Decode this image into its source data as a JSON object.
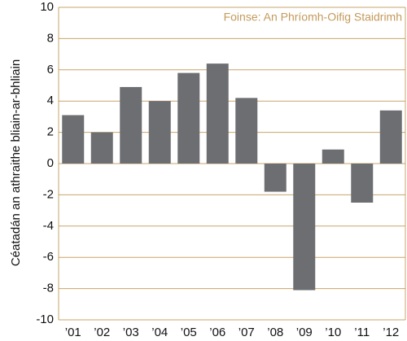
{
  "chart_data": {
    "type": "bar",
    "annotation": "Foinse: An Phríomh-Oifig Staidrimh",
    "ylabel": "Céatadán an athraithe bliain-ar-bhliain",
    "categories": [
      "’01",
      "’02",
      "’03",
      "’04",
      "’05",
      "’06",
      "’07",
      "’08",
      "’09",
      "’10",
      "’11",
      "’12"
    ],
    "values": [
      3.1,
      2.0,
      4.9,
      4.0,
      5.8,
      6.4,
      4.2,
      -1.8,
      -8.1,
      0.9,
      -2.5,
      3.4
    ],
    "color": "#6d6e71",
    "ylim": [
      -10,
      10
    ],
    "yticks": [
      -10,
      -8,
      -6,
      -4,
      -2,
      0,
      2,
      4,
      6,
      8,
      10
    ],
    "grid": true
  }
}
